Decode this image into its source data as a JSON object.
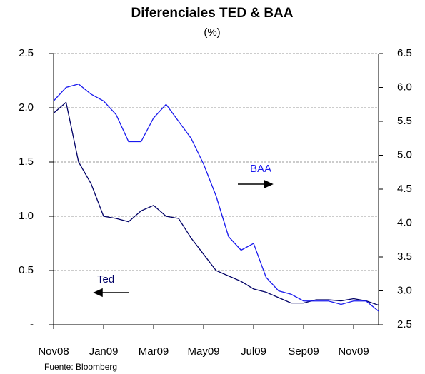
{
  "chart_data": {
    "type": "line",
    "title": "Diferenciales TED & BAA",
    "subtitle": "(%)",
    "source": "Fuente: Bloomberg",
    "categories": [
      "Nov08",
      null,
      null,
      null,
      "Jan09",
      null,
      null,
      null,
      "Mar09",
      null,
      null,
      null,
      "May09",
      null,
      null,
      null,
      "Jul09",
      null,
      null,
      null,
      "Sep09",
      null,
      null,
      null,
      "Nov09",
      null,
      null
    ],
    "series": [
      {
        "name": "Ted",
        "color": "#000066",
        "axis": "y",
        "values": [
          1.95,
          2.05,
          1.5,
          1.3,
          1.0,
          0.98,
          0.95,
          1.05,
          1.1,
          1.0,
          0.98,
          0.8,
          0.65,
          0.5,
          0.45,
          0.4,
          0.33,
          0.3,
          0.25,
          0.2,
          0.2,
          0.23,
          0.23,
          0.22,
          0.24,
          0.22,
          0.18
        ]
      },
      {
        "name": "BAA",
        "color": "#1a1aee",
        "axis": "y2",
        "values": [
          5.8,
          6.0,
          6.05,
          5.9,
          5.8,
          5.6,
          5.2,
          5.2,
          5.55,
          5.75,
          5.5,
          5.25,
          4.87,
          4.4,
          3.8,
          3.6,
          3.7,
          3.2,
          3.0,
          2.95,
          2.85,
          2.85,
          2.85,
          2.8,
          2.85,
          2.85,
          2.7
        ]
      }
    ],
    "annotations": [
      {
        "text": "BAA",
        "series": 1
      },
      {
        "text": "Ted",
        "series": 0
      }
    ],
    "ylim": [
      0,
      2.5
    ],
    "yticks": [
      {
        "value": 0,
        "label": "-"
      },
      0.5,
      {
        "value": 1,
        "label": "1.0"
      },
      1.5,
      {
        "value": 2,
        "label": "2.0"
      },
      2.5
    ],
    "y2lim": [
      2.5,
      6.5
    ],
    "y2ticks": [
      2.5,
      {
        "value": 3,
        "label": "3.0"
      },
      3.5,
      {
        "value": 4,
        "label": "4.0"
      },
      4.5,
      {
        "value": 5,
        "label": "5.0"
      },
      5.5,
      {
        "value": 6,
        "label": "6.0"
      },
      6.5
    ],
    "grid": true
  }
}
